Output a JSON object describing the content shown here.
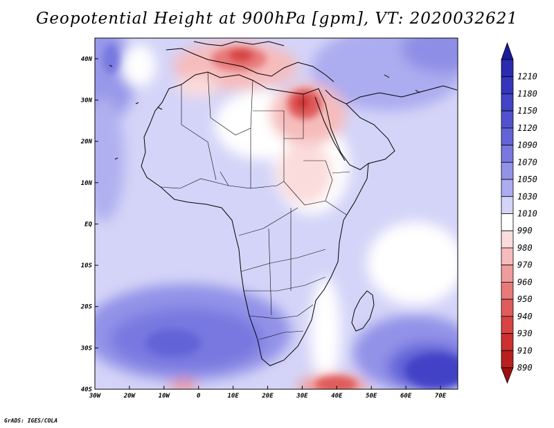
{
  "title": "Geopotential Height at 900hPa [gpm], VT: 2020032621",
  "credit": "GrADS: IGES/COLA",
  "map": {
    "lon_range": [
      -30,
      75
    ],
    "lat_range": [
      -40,
      45
    ],
    "lat_ticks": [
      {
        "value": 40,
        "label": "40N"
      },
      {
        "value": 30,
        "label": "30N"
      },
      {
        "value": 20,
        "label": "20N"
      },
      {
        "value": 10,
        "label": "10N"
      },
      {
        "value": 0,
        "label": "EQ"
      },
      {
        "value": -10,
        "label": "10S"
      },
      {
        "value": -20,
        "label": "20S"
      },
      {
        "value": -30,
        "label": "30S"
      },
      {
        "value": -40,
        "label": "40S"
      }
    ],
    "lon_ticks": [
      {
        "value": -30,
        "label": "30W"
      },
      {
        "value": -20,
        "label": "20W"
      },
      {
        "value": -10,
        "label": "10W"
      },
      {
        "value": 0,
        "label": "0"
      },
      {
        "value": 10,
        "label": "10E"
      },
      {
        "value": 20,
        "label": "20E"
      },
      {
        "value": 30,
        "label": "30E"
      },
      {
        "value": 40,
        "label": "40E"
      },
      {
        "value": 50,
        "label": "50E"
      },
      {
        "value": 60,
        "label": "60E"
      },
      {
        "value": 70,
        "label": "70E"
      }
    ]
  },
  "colorbar": {
    "levels": [
      {
        "label": "1210",
        "color": "#2b2bb0"
      },
      {
        "label": "1180",
        "color": "#3535bc"
      },
      {
        "label": "1150",
        "color": "#4343c6"
      },
      {
        "label": "1120",
        "color": "#5252cf"
      },
      {
        "label": "1090",
        "color": "#6464d8"
      },
      {
        "label": "1070",
        "color": "#7878e0"
      },
      {
        "label": "1050",
        "color": "#9292e8"
      },
      {
        "label": "1030",
        "color": "#acacf0"
      },
      {
        "label": "1010",
        "color": "#d4d4f8"
      },
      {
        "label": "990",
        "color": "#ffffff"
      },
      {
        "label": "980",
        "color": "#fbdcdc"
      },
      {
        "label": "970",
        "color": "#f6bcbc"
      },
      {
        "label": "960",
        "color": "#f09c9c"
      },
      {
        "label": "950",
        "color": "#e87a7a"
      },
      {
        "label": "940",
        "color": "#e05c5c"
      },
      {
        "label": "930",
        "color": "#d84444"
      },
      {
        "label": "910",
        "color": "#cc3030"
      },
      {
        "label": "890",
        "color": "#b82020"
      }
    ],
    "top_color": "#1a1a9c",
    "bottom_color": "#a01010"
  }
}
